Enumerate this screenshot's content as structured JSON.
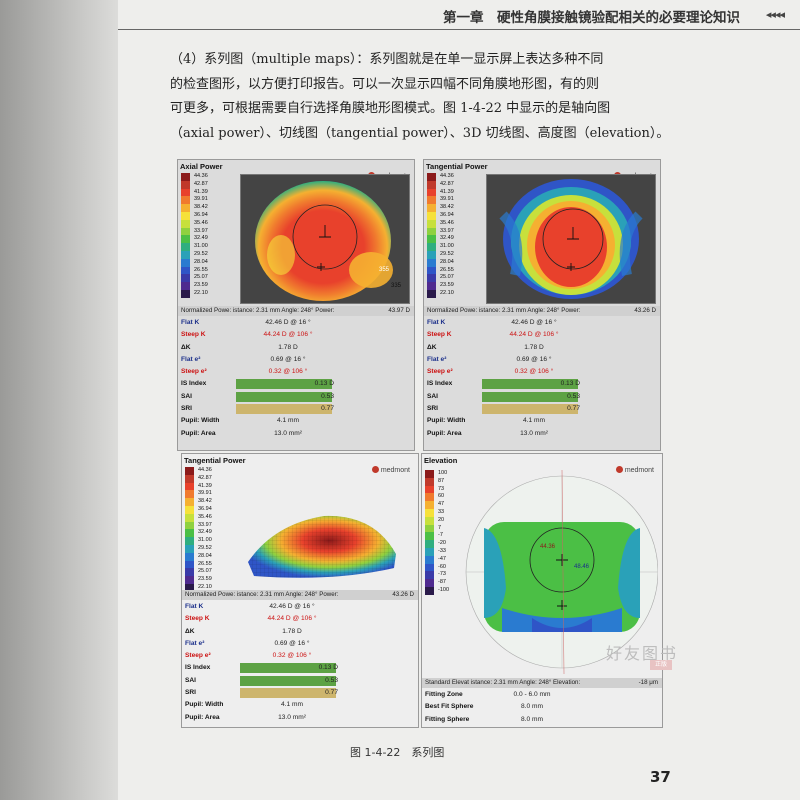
{
  "header": {
    "title": "第一章　硬性角膜接触镜验配相关的必要理论知识",
    "ornament": "◂◂◂◂"
  },
  "paragraph": {
    "line1": "（4）系列图（multiple maps）：系列图就是在单一显示屏上表达多种不同",
    "line2": "的检查图形，以方便打印报告。可以一次显示四幅不同角膜地形图，有的则",
    "line3": "可更多，可根据需要自行选择角膜地形图模式。图 1-4-22 中显示的是轴向图",
    "line4": "（axial power）、切线图（tangential power）、3D 切线图、高度图（elevation）。"
  },
  "brand": "medmont",
  "scale_power": [
    "44.36",
    "42.87",
    "41.39",
    "39.91",
    "38.42",
    "36.94",
    "35.46",
    "33.97",
    "32.49",
    "31.00",
    "29.52",
    "28.04",
    "26.55",
    "25.07",
    "23.59",
    "22.10"
  ],
  "scale_elev": [
    "100",
    "87",
    "73",
    "60",
    "47",
    "33",
    "20",
    "7",
    "-7",
    "-20",
    "-33",
    "-47",
    "-60",
    "-73",
    "-87",
    "-100"
  ],
  "colors": [
    "#8b1a1a",
    "#c0392b",
    "#e8412c",
    "#f07a2e",
    "#f5b031",
    "#f6e13a",
    "#c7e03c",
    "#8fd13f",
    "#4bbf45",
    "#2fae7f",
    "#2aa1b8",
    "#2a7bd0",
    "#2f55c7",
    "#3a3aa8",
    "#4f2a8f",
    "#2a1a4a"
  ],
  "panels": {
    "axial": {
      "title": "Axial Power",
      "npl": "Normalized Powe: istance: 2.31 mm Angle: 248° Power:",
      "npl_power": "43.97 D",
      "flat_k_label": "Flat K",
      "flat_k": "42.46 D @ 16 °",
      "steep_k_label": "Steep K",
      "steep_k": "44.24 D @ 106 °",
      "dk_label": "ΔK",
      "dk": "1.78 D",
      "flat_e_label": "Flat e²",
      "flat_e": "0.69 @ 16 °",
      "steep_e_label": "Steep e²",
      "steep_e": "0.32 @ 106 °",
      "is_label": "IS Index",
      "is": "0.13 D",
      "sai_label": "SAI",
      "sai": "0.53",
      "sri_label": "SRI",
      "sri": "0.77",
      "pw_label": "Pupil: Width",
      "pw": "4.1 mm",
      "pa_label": "Pupil: Area",
      "pa": "13.0 mm²",
      "map_labels": [
        "355",
        "335"
      ]
    },
    "tangential": {
      "title": "Tangential Power",
      "npl": "Normalized Powe: istance: 2.31 mm Angle: 248° Power:",
      "npl_power": "43.26 D",
      "flat_k_label": "Flat K",
      "flat_k": "42.46 D @ 16 °",
      "steep_k_label": "Steep K",
      "steep_k": "44.24 D @ 106 °",
      "dk_label": "ΔK",
      "dk": "1.78 D",
      "flat_e_label": "Flat e²",
      "flat_e": "0.69 @ 16 °",
      "steep_e_label": "Steep e²",
      "steep_e": "0.32 @ 106 °",
      "is_label": "IS Index",
      "is": "0.13 D",
      "sai_label": "SAI",
      "sai": "0.53",
      "sri_label": "SRI",
      "sri": "0.77",
      "pw_label": "Pupil: Width",
      "pw": "4.1 mm",
      "pa_label": "Pupil: Area",
      "pa": "13.0 mm²"
    },
    "tangential3d": {
      "title": "Tangential Power",
      "npl": "Normalized Powe: istance: 2.31 mm Angle: 248° Power:",
      "npl_power": "43.26 D",
      "flat_k_label": "Flat K",
      "flat_k": "42.46 D @ 16 °",
      "steep_k_label": "Steep K",
      "steep_k": "44.24 D @ 106 °",
      "dk_label": "ΔK",
      "dk": "1.78 D",
      "flat_e_label": "Flat e²",
      "flat_e": "0.69 @ 16 °",
      "steep_e_label": "Steep e²",
      "steep_e": "0.32 @ 106 °",
      "is_label": "IS Index",
      "is": "0.13 D",
      "sai_label": "SAI",
      "sai": "0.53",
      "sri_label": "SRI",
      "sri": "0.77",
      "pw_label": "Pupil: Width",
      "pw": "4.1 mm",
      "pa_label": "Pupil: Area",
      "pa": "13.0 mm²"
    },
    "elevation": {
      "title": "Elevation",
      "std": "Standard Elevat istance: 2.31 mm Angle: 248° Elevation:",
      "std_value": "-18 μm",
      "fz_label": "Fitting Zone",
      "fz": "0.0 - 6.0 mm",
      "bfs_label": "Best Fit Sphere",
      "bfs": "8.0 mm",
      "fs_label": "Fitting Sphere",
      "fs": "8.0 mm",
      "map_labels": [
        "44.36",
        "48.46"
      ]
    }
  },
  "figure_caption": "图 1-4-22　系列图",
  "page_number": "37",
  "watermark": "好友图书",
  "watermark_sub": "正版"
}
